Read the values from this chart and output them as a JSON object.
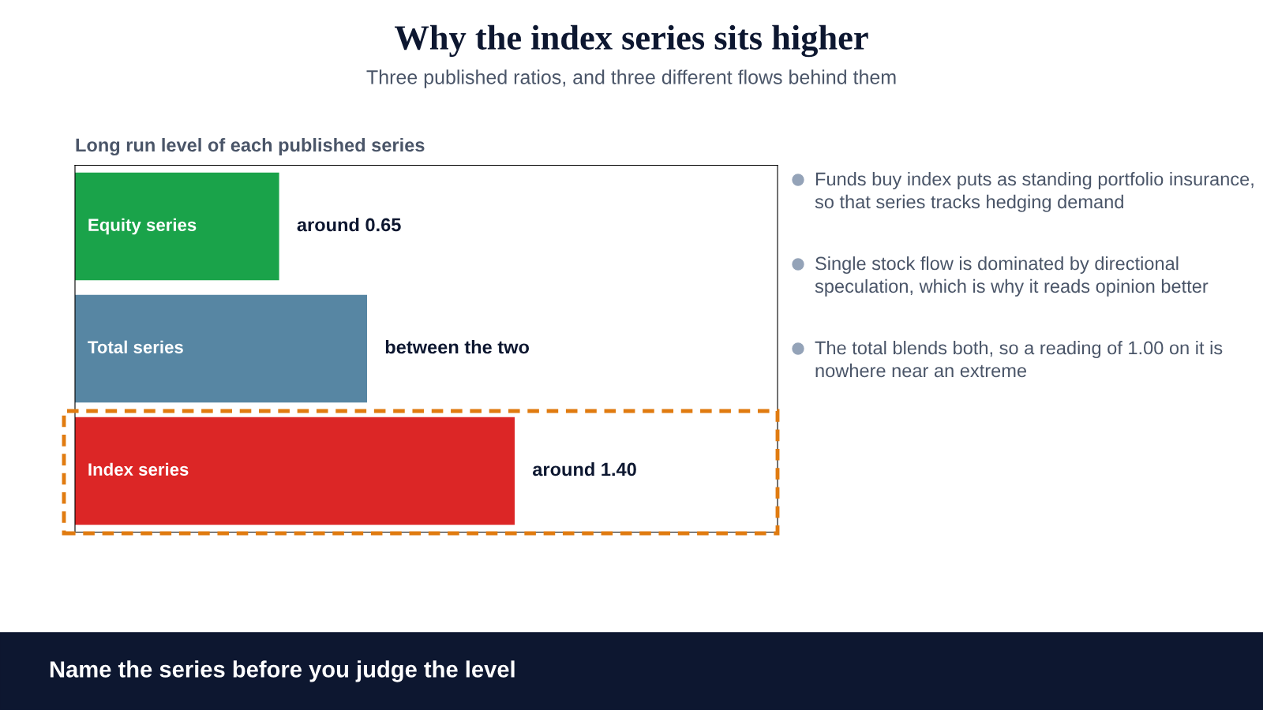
{
  "chart_data": {
    "type": "bar",
    "orientation": "horizontal",
    "title": "Why the index series sits higher",
    "subtitle": "Three published ratios, and three different flows behind them",
    "categories": [
      "Equity series",
      "Total series",
      "Index series"
    ],
    "values": [
      0.65,
      0.93,
      1.4
    ],
    "colors": [
      "#1aa34a",
      "#5786a3",
      "#dc2626"
    ],
    "value_labels": [
      "around 0.65",
      "between the two",
      "around 1.40"
    ],
    "annotations": [
      "Long run level of each published series",
      "Funds buy index puts as standing portfolio insurance, so that series tracks hedging demand",
      "Single stock flow is dominated by directional speculation, which is why it reads opinion better",
      "The total blends both, so a reading of 1.00 on it is nowhere near an extreme",
      "Name the series before you judge the level"
    ]
  }
}
